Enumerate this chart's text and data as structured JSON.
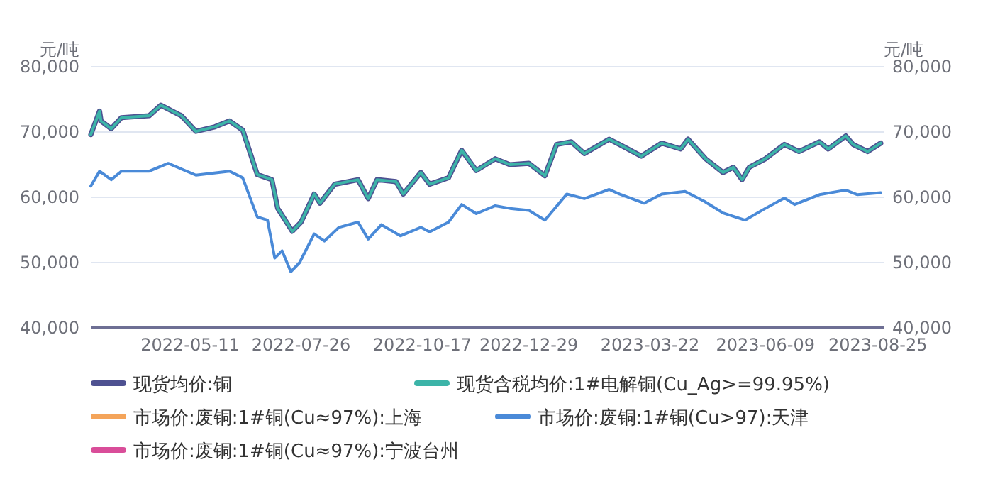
{
  "chart_data": {
    "type": "line",
    "ylabel": "元/吨",
    "y2label": "元/吨",
    "xlim": [
      "2022-03-04",
      "2023-08-29"
    ],
    "xticks": [
      "2022-05-11",
      "2022-07-26",
      "2022-10-17",
      "2022-12-29",
      "2023-03-22",
      "2023-06-09",
      "2023-08-25"
    ],
    "ylim": [
      40000,
      80000
    ],
    "yticks": [
      {
        "value": 40000,
        "label": "40,000"
      },
      {
        "value": 50000,
        "label": "50,000"
      },
      {
        "value": 60000,
        "label": "60,000"
      },
      {
        "value": 70000,
        "label": "70,000"
      },
      {
        "value": 80000,
        "label": "80,000"
      }
    ],
    "y2lim": [
      40000,
      80000
    ],
    "y2ticks": [
      {
        "value": 40000,
        "label": "40,000"
      },
      {
        "value": 50000,
        "label": "50,000"
      },
      {
        "value": 60000,
        "label": "60,000"
      },
      {
        "value": 70000,
        "label": "70,000"
      },
      {
        "value": 80000,
        "label": "80,000"
      }
    ],
    "grid": "y",
    "legend": "bottom",
    "marker": "none",
    "line_style": "solid",
    "series": [
      {
        "name": "现货均价:铜",
        "color": "#4e5191",
        "x": [
          "2022-03-04",
          "2022-03-10",
          "2022-03-11",
          "2022-03-18",
          "2022-03-25",
          "2022-04-13",
          "2022-04-21",
          "2022-05-05",
          "2022-05-15",
          "2022-05-28",
          "2022-06-07",
          "2022-06-16",
          "2022-06-26",
          "2022-07-06",
          "2022-07-10",
          "2022-07-20",
          "2022-07-26",
          "2022-08-04",
          "2022-08-08",
          "2022-08-18",
          "2022-09-03",
          "2022-09-10",
          "2022-09-16",
          "2022-09-29",
          "2022-10-04",
          "2022-10-16",
          "2022-10-22",
          "2022-11-04",
          "2022-11-13",
          "2022-11-23",
          "2022-12-06",
          "2022-12-16",
          "2022-12-29",
          "2023-01-09",
          "2023-01-17",
          "2023-01-27",
          "2023-02-05",
          "2023-02-22",
          "2023-03-01",
          "2023-03-16",
          "2023-03-30",
          "2023-04-12",
          "2023-04-17",
          "2023-04-29",
          "2023-05-11",
          "2023-05-18",
          "2023-05-24",
          "2023-05-29",
          "2023-06-09",
          "2023-06-22",
          "2023-07-02",
          "2023-07-16",
          "2023-07-22",
          "2023-08-03",
          "2023-08-08",
          "2023-08-18",
          "2023-08-27"
        ],
        "values": [
          69600,
          73200,
          71700,
          70500,
          72200,
          72500,
          74100,
          72500,
          70100,
          70800,
          71700,
          70300,
          63500,
          62700,
          58300,
          54800,
          56200,
          60500,
          59100,
          62000,
          62700,
          59800,
          62700,
          62400,
          60500,
          63800,
          62000,
          63000,
          67200,
          64100,
          65900,
          65000,
          65200,
          63300,
          68100,
          68500,
          66700,
          68900,
          68100,
          66300,
          68300,
          67400,
          68900,
          65900,
          63800,
          64600,
          62700,
          64600,
          65900,
          68100,
          67000,
          68500,
          67400,
          69400,
          68100,
          67000,
          68300
        ]
      },
      {
        "name": "现货含税均价:1#电解铜(Cu_Ag>=99.95%)",
        "color": "#3cb4a8",
        "x": [
          "2022-03-04",
          "2022-03-10",
          "2022-03-11",
          "2022-03-18",
          "2022-03-25",
          "2022-04-13",
          "2022-04-21",
          "2022-05-05",
          "2022-05-15",
          "2022-05-28",
          "2022-06-07",
          "2022-06-16",
          "2022-06-26",
          "2022-07-06",
          "2022-07-10",
          "2022-07-20",
          "2022-07-26",
          "2022-08-04",
          "2022-08-08",
          "2022-08-18",
          "2022-09-03",
          "2022-09-10",
          "2022-09-16",
          "2022-09-29",
          "2022-10-04",
          "2022-10-16",
          "2022-10-22",
          "2022-11-04",
          "2022-11-13",
          "2022-11-23",
          "2022-12-06",
          "2022-12-16",
          "2022-12-29",
          "2023-01-09",
          "2023-01-17",
          "2023-01-27",
          "2023-02-05",
          "2023-02-22",
          "2023-03-01",
          "2023-03-16",
          "2023-03-30",
          "2023-04-12",
          "2023-04-17",
          "2023-04-29",
          "2023-05-11",
          "2023-05-18",
          "2023-05-24",
          "2023-05-29",
          "2023-06-09",
          "2023-06-22",
          "2023-07-02",
          "2023-07-16",
          "2023-07-22",
          "2023-08-03",
          "2023-08-08",
          "2023-08-18",
          "2023-08-27"
        ],
        "values": [
          69600,
          73200,
          71700,
          70500,
          72200,
          72500,
          74100,
          72500,
          70100,
          70800,
          71700,
          70300,
          63500,
          62700,
          58300,
          54800,
          56200,
          60500,
          59100,
          62000,
          62700,
          59800,
          62700,
          62400,
          60500,
          63800,
          62000,
          63000,
          67200,
          64100,
          65900,
          65000,
          65200,
          63300,
          68100,
          68500,
          66700,
          68900,
          68100,
          66300,
          68300,
          67400,
          68900,
          65900,
          63800,
          64600,
          62700,
          64600,
          65900,
          68100,
          67000,
          68500,
          67400,
          69400,
          68100,
          67000,
          68300
        ]
      },
      {
        "name": "市场价:废铜:1#铜(Cu≈97%):上海",
        "color": "#f4a45a"
      },
      {
        "name": "市场价:废铜:1#铜(Cu>97):天津",
        "color": "#4a8ad8",
        "x": [
          "2022-03-04",
          "2022-03-10",
          "2022-03-18",
          "2022-03-25",
          "2022-04-13",
          "2022-04-26",
          "2022-05-15",
          "2022-06-07",
          "2022-06-16",
          "2022-06-26",
          "2022-07-03",
          "2022-07-08",
          "2022-07-13",
          "2022-07-19",
          "2022-07-25",
          "2022-08-04",
          "2022-08-11",
          "2022-08-21",
          "2022-09-03",
          "2022-09-10",
          "2022-09-19",
          "2022-10-02",
          "2022-10-16",
          "2022-10-22",
          "2022-11-04",
          "2022-11-13",
          "2022-11-23",
          "2022-12-06",
          "2022-12-16",
          "2022-12-29",
          "2023-01-09",
          "2023-01-24",
          "2023-02-05",
          "2023-02-22",
          "2023-03-01",
          "2023-03-18",
          "2023-03-30",
          "2023-04-15",
          "2023-04-28",
          "2023-05-11",
          "2023-05-26",
          "2023-06-09",
          "2023-06-22",
          "2023-06-29",
          "2023-07-16",
          "2023-08-03",
          "2023-08-11",
          "2023-08-27"
        ],
        "values": [
          61700,
          64000,
          62700,
          64000,
          64000,
          65200,
          63400,
          64000,
          63000,
          57000,
          56500,
          50700,
          51800,
          48600,
          50000,
          54400,
          53300,
          55400,
          56200,
          53600,
          55800,
          54100,
          55400,
          54700,
          56200,
          58900,
          57500,
          58700,
          58300,
          58000,
          56500,
          60500,
          59800,
          61200,
          60500,
          59100,
          60500,
          60900,
          59400,
          57600,
          56500,
          58300,
          59900,
          58900,
          60400,
          61100,
          60400,
          60700
        ]
      },
      {
        "name": "市场价:废铜:1#铜(Cu≈97%):宁波台州",
        "color": "#d94d99"
      }
    ]
  }
}
